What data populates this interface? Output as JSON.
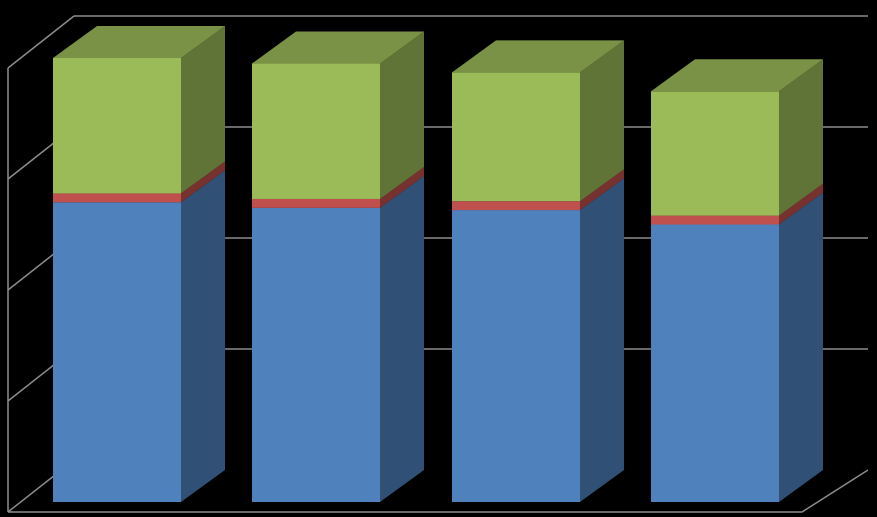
{
  "chart_data": {
    "type": "bar",
    "stacked": true,
    "three_d": true,
    "categories": [
      "",
      "",
      "",
      ""
    ],
    "series": [
      {
        "color": "#4F81BD",
        "values": [
          2.7,
          2.65,
          2.63,
          2.5
        ]
      },
      {
        "color": "#C0504D",
        "values": [
          0.08,
          0.08,
          0.08,
          0.08
        ]
      },
      {
        "color": "#9BBB59",
        "values": [
          1.22,
          1.22,
          1.16,
          1.12
        ]
      }
    ],
    "ylim": [
      0,
      4
    ],
    "y_major_step": 1,
    "grid": true,
    "legend": "none",
    "title": "",
    "xlabel": "",
    "ylabel": ""
  }
}
